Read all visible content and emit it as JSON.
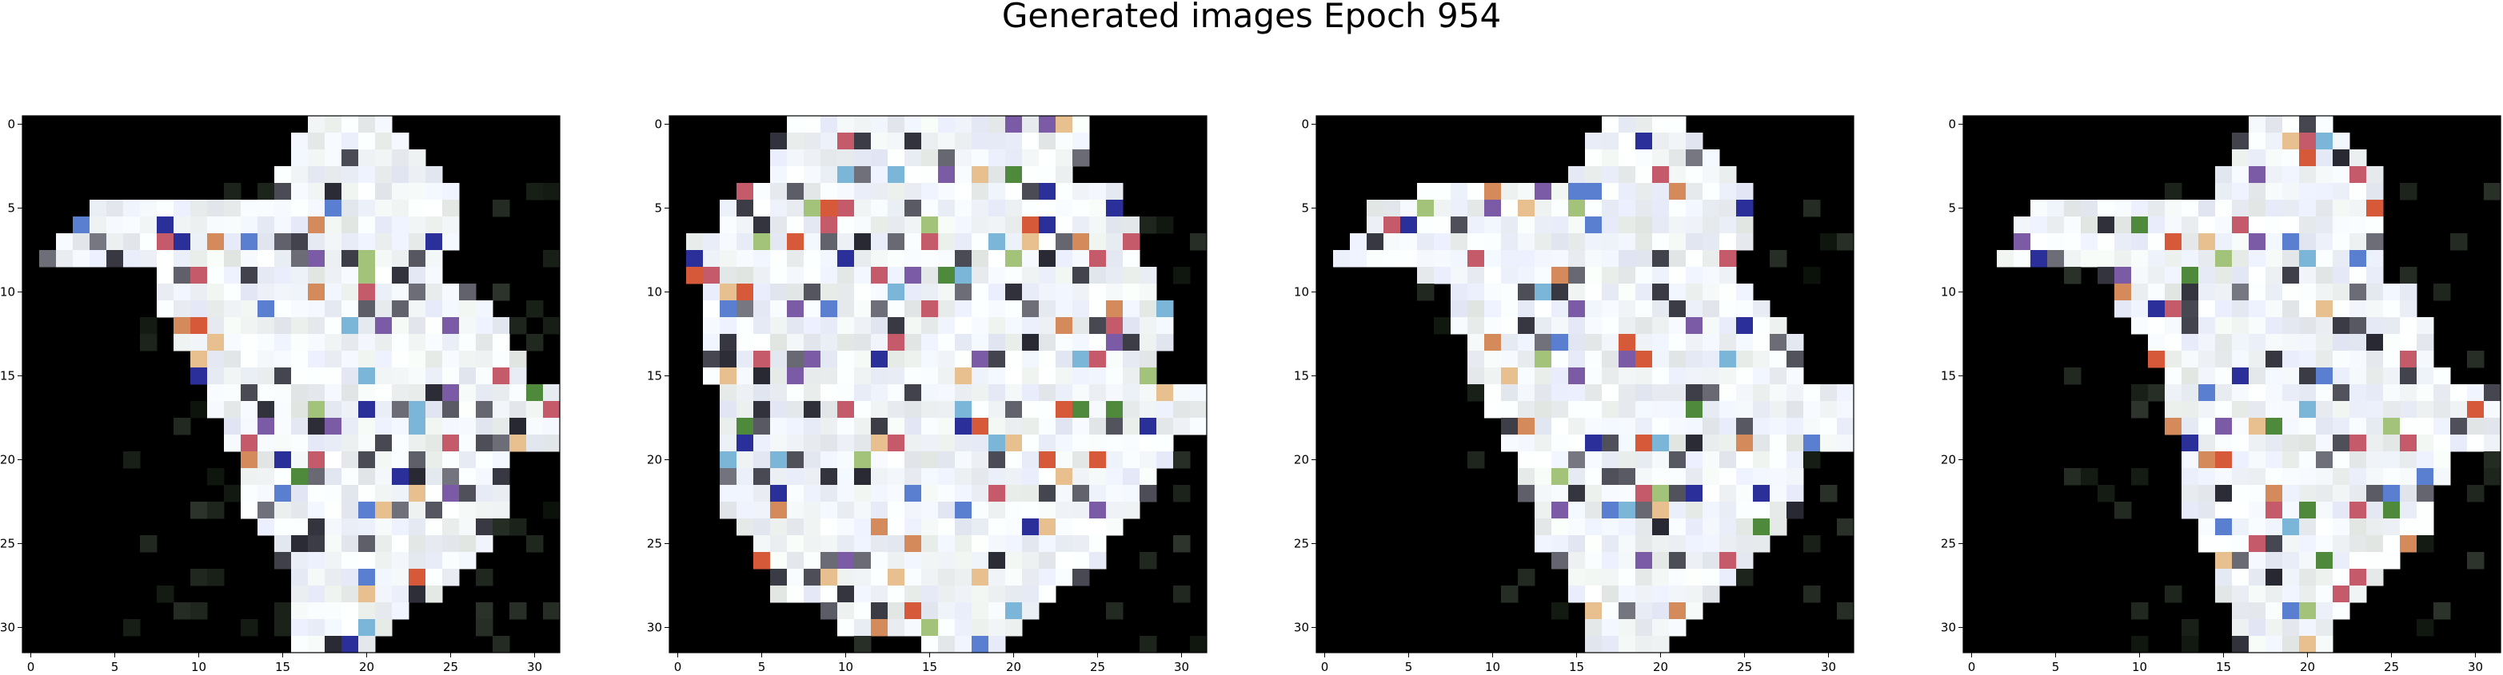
{
  "title": "Generated images Epoch 954",
  "chart_data": {
    "type": "heatmap",
    "panels": [
      {
        "xlim": [
          -0.5,
          31.5
        ],
        "ylim": [
          31.5,
          -0.5
        ],
        "xticks": [
          "0",
          "5",
          "10",
          "15",
          "20",
          "25",
          "30"
        ],
        "yticks": [
          "0",
          "5",
          "10",
          "15",
          "20",
          "25",
          "30"
        ],
        "background": "#000000"
      },
      {
        "xlim": [
          -0.5,
          31.5
        ],
        "ylim": [
          31.5,
          -0.5
        ],
        "xticks": [
          "0",
          "5",
          "10",
          "15",
          "20",
          "25",
          "30"
        ],
        "yticks": [
          "0",
          "5",
          "10",
          "15",
          "20",
          "25",
          "30"
        ],
        "background": "#000000"
      },
      {
        "xlim": [
          -0.5,
          31.5
        ],
        "ylim": [
          31.5,
          -0.5
        ],
        "xticks": [
          "0",
          "5",
          "10",
          "15",
          "20",
          "25",
          "30"
        ],
        "yticks": [
          "0",
          "5",
          "10",
          "15",
          "20",
          "25",
          "30"
        ],
        "background": "#000000"
      },
      {
        "xlim": [
          -0.5,
          31.5
        ],
        "ylim": [
          31.5,
          -0.5
        ],
        "xticks": [
          "0",
          "5",
          "10",
          "15",
          "20",
          "25",
          "30"
        ],
        "yticks": [
          "0",
          "5",
          "10",
          "15",
          "20",
          "25",
          "30"
        ],
        "background": "#000000"
      }
    ]
  }
}
